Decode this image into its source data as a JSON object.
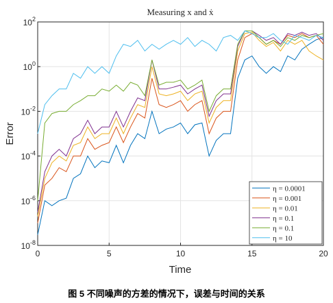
{
  "chart_data": {
    "type": "line",
    "title": "Measuring x and ẋ",
    "xlabel": "Time",
    "ylabel": "Error",
    "caption": "图 5 不同噪声的方差的情况下，误差与时间的关系",
    "x": [
      0,
      0.5,
      1,
      1.5,
      2,
      2.5,
      3,
      3.5,
      4,
      4.5,
      5,
      5.5,
      6,
      6.5,
      7,
      7.5,
      8,
      8.5,
      9,
      9.5,
      10,
      10.5,
      11,
      11.5,
      12,
      12.5,
      13,
      13.5,
      14,
      14.5,
      15,
      15.5,
      16,
      16.5,
      17,
      17.5,
      18,
      18.5,
      19,
      19.5,
      20
    ],
    "series": [
      {
        "name": "η = 0.0001",
        "color": "#0072BD",
        "values": [
          3e-08,
          1e-06,
          6e-07,
          1e-06,
          1.3e-06,
          1e-05,
          1.6e-05,
          0.0001,
          3e-05,
          6e-05,
          5e-05,
          0.0003,
          5e-05,
          0.0003,
          0.001,
          0.0006,
          0.01,
          0.001,
          0.0016,
          0.002,
          0.003,
          0.001,
          0.0025,
          0.003,
          0.0001,
          0.0005,
          0.001,
          0.001,
          0.3,
          2,
          3,
          1,
          0.5,
          1,
          0.6,
          3,
          2,
          6,
          10,
          16,
          20
        ]
      },
      {
        "name": "η = 0.001",
        "color": "#D95319",
        "values": [
          1e-07,
          5e-06,
          1e-05,
          3e-05,
          2e-05,
          0.0001,
          0.0001,
          0.0006,
          0.0002,
          0.0003,
          0.0004,
          0.002,
          0.0004,
          0.002,
          0.008,
          0.005,
          0.3,
          0.02,
          0.015,
          0.02,
          0.03,
          0.01,
          0.02,
          0.03,
          0.001,
          0.005,
          0.01,
          0.01,
          2,
          20,
          30,
          20,
          10,
          15,
          10,
          25,
          20,
          30,
          20,
          25,
          10
        ]
      },
      {
        "name": "η = 0.01",
        "color": "#EDB120",
        "values": [
          2e-07,
          1e-05,
          5e-05,
          0.0001,
          6e-05,
          0.0003,
          0.0004,
          0.002,
          0.0006,
          0.001,
          0.001,
          0.005,
          0.001,
          0.005,
          0.02,
          0.015,
          1,
          0.06,
          0.05,
          0.06,
          0.08,
          0.03,
          0.06,
          0.08,
          0.003,
          0.015,
          0.03,
          0.03,
          5,
          30,
          35,
          15,
          8,
          12,
          5,
          15,
          10,
          15,
          5,
          3,
          2
        ]
      },
      {
        "name": "η = 0.1",
        "color": "#7E2F8E",
        "values": [
          3e-07,
          2e-05,
          0.0001,
          0.0002,
          0.0001,
          0.0006,
          0.001,
          0.004,
          0.001,
          0.002,
          0.002,
          0.01,
          0.002,
          0.01,
          0.04,
          0.03,
          2,
          0.1,
          0.1,
          0.12,
          0.15,
          0.06,
          0.1,
          0.15,
          0.006,
          0.03,
          0.06,
          0.06,
          8,
          40,
          40,
          25,
          15,
          20,
          10,
          30,
          25,
          35,
          25,
          30,
          15
        ]
      },
      {
        "name": "η = 0.1",
        "color": "#77AC30",
        "values": [
          1e-06,
          0.003,
          0.008,
          0.01,
          0.01,
          0.02,
          0.03,
          0.05,
          0.05,
          0.1,
          0.08,
          0.15,
          0.08,
          0.2,
          0.15,
          0.05,
          2,
          0.15,
          0.2,
          0.2,
          0.25,
          0.1,
          0.15,
          0.25,
          0.01,
          0.05,
          0.1,
          0.1,
          10,
          40,
          40,
          20,
          10,
          15,
          8,
          20,
          15,
          25,
          20,
          25,
          30
        ]
      },
      {
        "name": "η = 10",
        "color": "#4DBEEE",
        "values": [
          0.001,
          0.02,
          0.05,
          0.1,
          0.1,
          0.5,
          0.3,
          1,
          0.5,
          1,
          0.5,
          3,
          10,
          8,
          15,
          5,
          10,
          6,
          10,
          15,
          10,
          20,
          8,
          15,
          10,
          5,
          20,
          25,
          15,
          40,
          30,
          20,
          20,
          30,
          15,
          10,
          25,
          20,
          15,
          25,
          20
        ]
      }
    ],
    "xlim": [
      0,
      20
    ],
    "xticks": [
      0,
      5,
      10,
      15,
      20
    ],
    "ylim": [
      1e-08,
      100
    ],
    "log_y": true,
    "yticks": [
      {
        "value": 1e-08,
        "label": "10^-8"
      },
      {
        "value": 1e-06,
        "label": "10^-6"
      },
      {
        "value": 0.0001,
        "label": "10^-4"
      },
      {
        "value": 0.01,
        "label": "10^-2"
      },
      {
        "value": 1,
        "label": "10^0"
      },
      {
        "value": 100,
        "label": "10^2"
      }
    ],
    "grid": true,
    "legend": "lower right"
  }
}
